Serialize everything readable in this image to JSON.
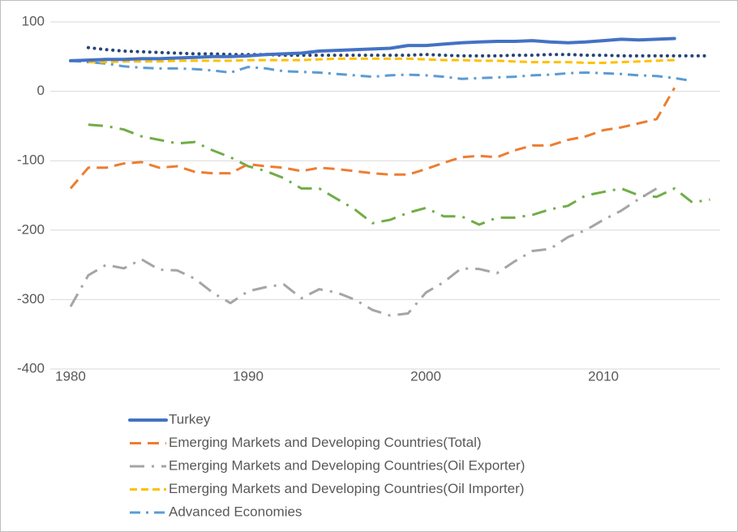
{
  "chart_data": {
    "type": "line",
    "x": [
      1980,
      1981,
      1982,
      1983,
      1984,
      1985,
      1986,
      1987,
      1988,
      1989,
      1990,
      1991,
      1992,
      1993,
      1994,
      1995,
      1996,
      1997,
      1998,
      1999,
      2000,
      2001,
      2002,
      2003,
      2004,
      2005,
      2006,
      2007,
      2008,
      2009,
      2010,
      2011,
      2012,
      2013,
      2014,
      2015,
      2016
    ],
    "xlim": [
      1978.86,
      2016.57
    ],
    "xticks": [
      1980,
      1990,
      2000,
      2010
    ],
    "ylim": [
      -400,
      100
    ],
    "yticks": [
      -400,
      -300,
      -200,
      -100,
      0,
      100
    ],
    "grid": true,
    "series": [
      {
        "name": "Turkey",
        "color": "#4472c4",
        "style": "solid",
        "values": [
          44,
          45,
          46,
          46,
          47,
          47,
          48,
          49,
          50,
          50,
          51,
          53,
          54,
          55,
          58,
          59,
          60,
          61,
          62,
          66,
          66,
          68,
          70,
          71,
          72,
          72,
          73,
          71,
          70,
          71,
          73,
          75,
          74,
          75,
          76,
          null,
          null
        ]
      },
      {
        "name": "Emerging Markets and Developing Countries(Total)",
        "color": "#ed7d31",
        "style": "dash",
        "values": [
          -140,
          -110,
          -110,
          -104,
          -102,
          -110,
          -108,
          -116,
          -118,
          -118,
          -105,
          -108,
          -110,
          -115,
          -110,
          -112,
          -115,
          -118,
          -120,
          -120,
          -112,
          -103,
          -95,
          -93,
          -95,
          -85,
          -78,
          -78,
          -70,
          -65,
          -56,
          -52,
          -46,
          -40,
          5,
          null,
          null
        ]
      },
      {
        "name": "Emerging Markets and Developing Countries(Oil Exporter)",
        "color": "#a5a5a5",
        "style": "longdashdot",
        "values": [
          -310,
          -265,
          -250,
          -255,
          -242,
          -257,
          -258,
          -270,
          -290,
          -305,
          -288,
          -282,
          -278,
          -298,
          -285,
          -290,
          -300,
          -315,
          -323,
          -320,
          -290,
          -275,
          -255,
          -256,
          -262,
          -245,
          -230,
          -227,
          -210,
          -200,
          -185,
          -172,
          -155,
          -140,
          null,
          null,
          null
        ]
      },
      {
        "name": "Emerging Markets and Developing Countries(Oil Importer)",
        "color": "#ffc000",
        "style": "shortdash",
        "values": [
          null,
          42,
          42,
          43,
          43,
          43,
          44,
          44,
          44,
          44,
          45,
          45,
          45,
          45,
          46,
          47,
          47,
          47,
          47,
          47,
          46,
          45,
          45,
          44,
          44,
          43,
          42,
          42,
          42,
          41,
          41,
          42,
          43,
          44,
          45,
          null,
          null
        ]
      },
      {
        "name": "Advanced Economies",
        "color": "#5b9bd5",
        "style": "dashdot",
        "values": [
          44,
          42,
          40,
          36,
          34,
          33,
          33,
          32,
          30,
          27,
          35,
          33,
          29,
          28,
          27,
          25,
          23,
          21,
          23,
          24,
          23,
          21,
          18,
          19,
          20,
          21,
          23,
          24,
          26,
          27,
          26,
          25,
          23,
          22,
          19,
          15,
          null
        ]
      },
      {
        "color": "#264478",
        "style": "dot",
        "values": [
          null,
          63,
          60,
          58,
          57,
          56,
          55,
          54,
          54,
          53,
          53,
          53,
          52,
          52,
          52,
          52,
          52,
          52,
          52,
          52,
          53,
          52,
          51,
          51,
          51,
          52,
          52,
          53,
          53,
          52,
          52,
          51,
          51,
          51,
          51,
          51,
          51
        ]
      },
      {
        "color": "#70ad47",
        "style": "longdashdot",
        "values": [
          null,
          -48,
          -50,
          -55,
          -65,
          -70,
          -75,
          -73,
          -85,
          -95,
          -108,
          -115,
          -125,
          -140,
          -140,
          -155,
          -170,
          -190,
          -185,
          -175,
          -168,
          -180,
          -180,
          -192,
          -182,
          -182,
          -178,
          -170,
          -165,
          -150,
          -145,
          -140,
          -150,
          -152,
          -140,
          -160,
          -156
        ]
      }
    ]
  }
}
